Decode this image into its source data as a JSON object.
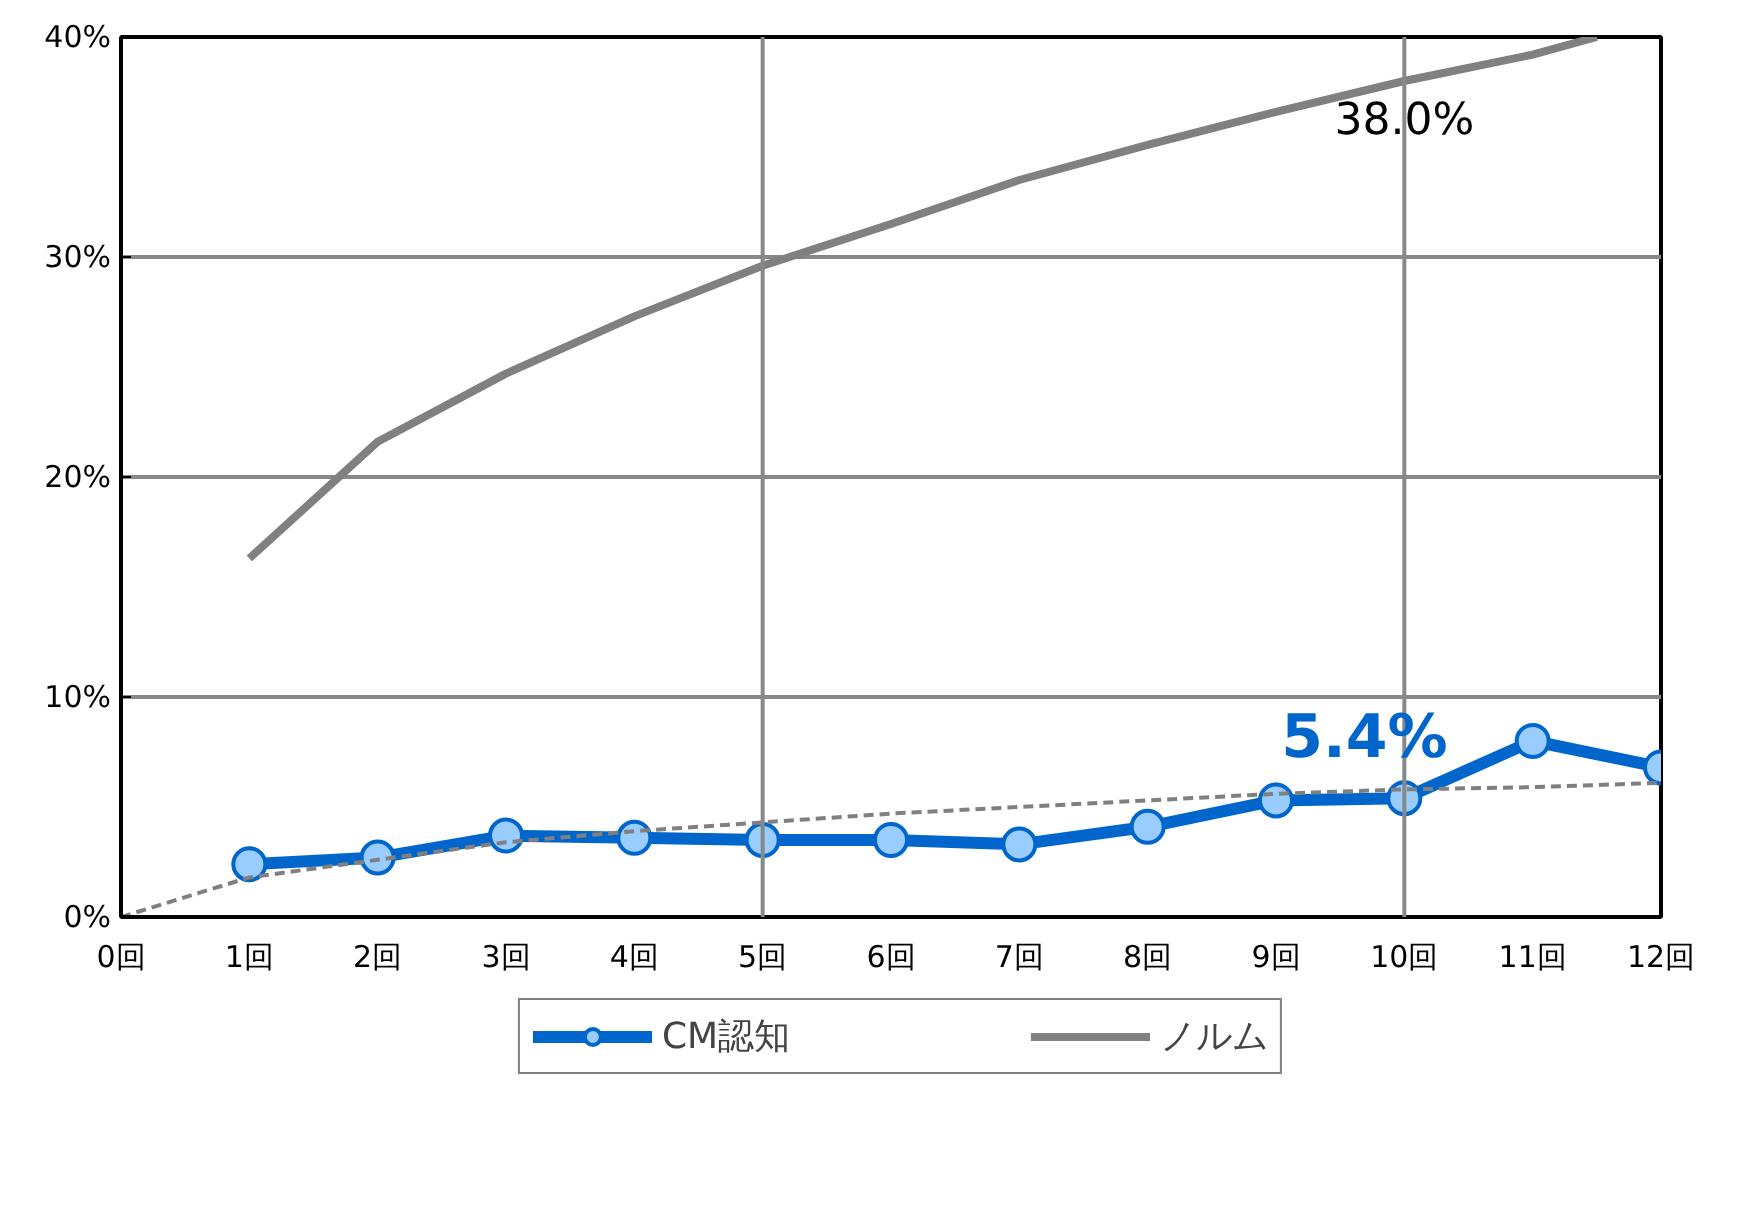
{
  "chart_data": {
    "type": "line",
    "xlim": [
      0,
      12
    ],
    "xticks": [
      {
        "value": 0,
        "label": "0回"
      },
      {
        "value": 1,
        "label": "1回"
      },
      {
        "value": 2,
        "label": "2回"
      },
      {
        "value": 3,
        "label": "3回"
      },
      {
        "value": 4,
        "label": "4回"
      },
      {
        "value": 5,
        "label": "5回"
      },
      {
        "value": 6,
        "label": "6回"
      },
      {
        "value": 7,
        "label": "7回"
      },
      {
        "value": 8,
        "label": "8回"
      },
      {
        "value": 9,
        "label": "9回"
      },
      {
        "value": 10,
        "label": "10回"
      },
      {
        "value": 11,
        "label": "11回"
      },
      {
        "value": 12,
        "label": "12回"
      }
    ],
    "ylim": [
      0,
      40
    ],
    "yticks": [
      {
        "value": 0,
        "label": "0%"
      },
      {
        "value": 10,
        "label": "10%"
      },
      {
        "value": 20,
        "label": "20%"
      },
      {
        "value": 30,
        "label": "30%"
      },
      {
        "value": 40,
        "label": "40%"
      }
    ],
    "grid": "y",
    "legend": "bottom",
    "ref_lines": [
      {
        "axis": "x",
        "value": 5,
        "label": null,
        "color": "#888888"
      },
      {
        "axis": "x",
        "value": 10,
        "label": null,
        "color": "#888888"
      }
    ],
    "series": [
      {
        "name": "CM認知",
        "color": "#0066cc",
        "marker": "circle",
        "line_style": "solid",
        "x": [
          1,
          2,
          3,
          4,
          5,
          6,
          7,
          8,
          9,
          10,
          11,
          12
        ],
        "values": [
          2.4,
          2.7,
          3.7,
          3.6,
          3.5,
          3.5,
          3.3,
          4.1,
          5.3,
          5.4,
          8.0,
          6.8
        ]
      },
      {
        "name": "ノルム",
        "color": "#808080",
        "marker": "none",
        "line_style": "solid",
        "x": [
          1,
          2,
          3,
          4,
          5,
          6,
          7,
          8,
          9,
          10,
          11,
          11.5
        ],
        "values": [
          16.3,
          21.6,
          24.7,
          27.3,
          29.6,
          31.5,
          33.5,
          35.1,
          36.6,
          38.0,
          39.2,
          40.0
        ]
      },
      {
        "color": "#808080",
        "marker": "none",
        "line_style": "dashed",
        "x": [
          0,
          1,
          2,
          3,
          4,
          5,
          6,
          7,
          8,
          9,
          10,
          11,
          12
        ],
        "values": [
          0,
          1.8,
          2.6,
          3.4,
          3.9,
          4.3,
          4.7,
          5.0,
          5.3,
          5.6,
          5.8,
          5.9,
          6.1
        ]
      }
    ],
    "annotations": [
      {
        "text": "38.0%",
        "x": 10,
        "y": 38.0
      },
      {
        "text": "5.4%",
        "x": 10,
        "y": 5.4
      }
    ]
  }
}
